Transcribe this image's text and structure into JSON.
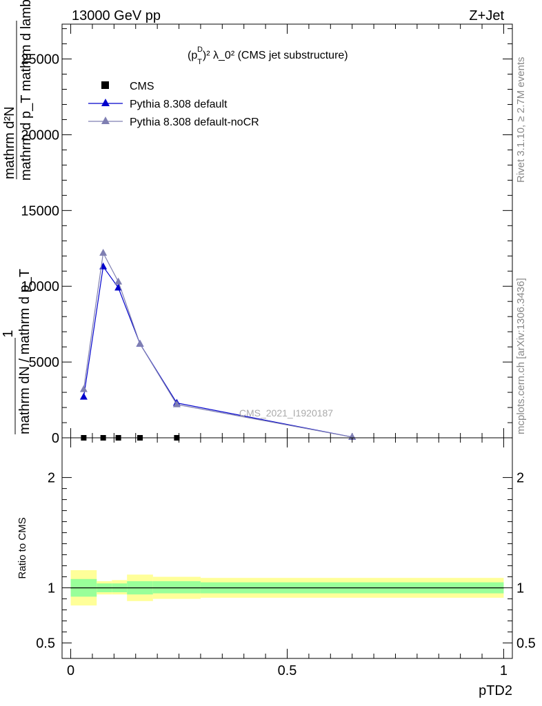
{
  "header": {
    "left": "13000 GeV pp",
    "right": "Z+Jet"
  },
  "side_labels": {
    "rivet": "Rivet 3.1.10, ≥ 2.7M events",
    "mcplots": "mcplots.cern.ch [arXiv:1306.3436]"
  },
  "main_plot": {
    "title_parts": {
      "p": "(p",
      "sub": "T",
      "sup": "D",
      "rest": ")² λ_0² (CMS jet substructure)"
    },
    "ylabel_top_line": "mathrm d²N",
    "ylabel_bottom_line": "mathrm d p_T mathrm d lambda",
    "ylabel_prefix_numer": "1",
    "ylabel_prefix_denom": "mathrm dN / mathrm d p_T",
    "watermark": "CMS_2021_I1920187",
    "legend": [
      {
        "label": "CMS",
        "color": "#000000",
        "marker": "square"
      },
      {
        "label": "Pythia 8.308 default",
        "color": "#0000cc",
        "marker": "triangle"
      },
      {
        "label": "Pythia 8.308 default-noCR",
        "color": "#7f7fb2",
        "marker": "triangle"
      }
    ]
  },
  "ratio_plot": {
    "ylabel": "Ratio to CMS",
    "xlabel": "pTD2"
  },
  "chart_data": {
    "type": "line",
    "x_range": [
      -0.02,
      1.02
    ],
    "main_ylim": [
      0,
      27300
    ],
    "ratio_ylim": [
      0.36,
      2.36
    ],
    "main_yticks": [
      0,
      5000,
      10000,
      15000,
      20000,
      25000
    ],
    "main_ytick_labels": [
      "0",
      "5000",
      "10000",
      "15000",
      "20000",
      "25000"
    ],
    "ratio_yticks": [
      0.5,
      1,
      2
    ],
    "ratio_ytick_labels": [
      "0.5",
      "1",
      "2"
    ],
    "xticks": [
      0,
      0.5,
      1
    ],
    "xtick_labels": [
      "0",
      "0.5",
      "1"
    ],
    "bin_edges": [
      0,
      0.06,
      0.095,
      0.13,
      0.19,
      0.3,
      1.0
    ],
    "series": [
      {
        "name": "CMS",
        "color": "#000000",
        "x": [
          0.03,
          0.075,
          0.11,
          0.16,
          0.245
        ],
        "y": [
          0,
          0,
          0,
          0,
          0
        ]
      },
      {
        "name": "Pythia 8.308 default",
        "color": "#0000cc",
        "x": [
          0.03,
          0.075,
          0.11,
          0.16,
          0.245,
          0.65
        ],
        "y": [
          2700,
          11300,
          9900,
          6200,
          2300,
          50
        ]
      },
      {
        "name": "Pythia 8.308 default-noCR",
        "color": "#7f7fb2",
        "x": [
          0.03,
          0.075,
          0.11,
          0.16,
          0.245,
          0.65
        ],
        "y": [
          3200,
          12200,
          10300,
          6200,
          2200,
          50
        ]
      }
    ],
    "ratio_bands": {
      "inner": [
        [
          0.92,
          1.08
        ],
        [
          0.96,
          1.04
        ],
        [
          0.96,
          1.04
        ],
        [
          0.94,
          1.06
        ],
        [
          0.95,
          1.06
        ],
        [
          0.95,
          1.05
        ]
      ],
      "outer": [
        [
          0.84,
          1.16
        ],
        [
          0.94,
          1.06
        ],
        [
          0.94,
          1.07
        ],
        [
          0.88,
          1.12
        ],
        [
          0.9,
          1.1
        ],
        [
          0.91,
          1.09
        ]
      ]
    },
    "ratio_line": 1
  }
}
